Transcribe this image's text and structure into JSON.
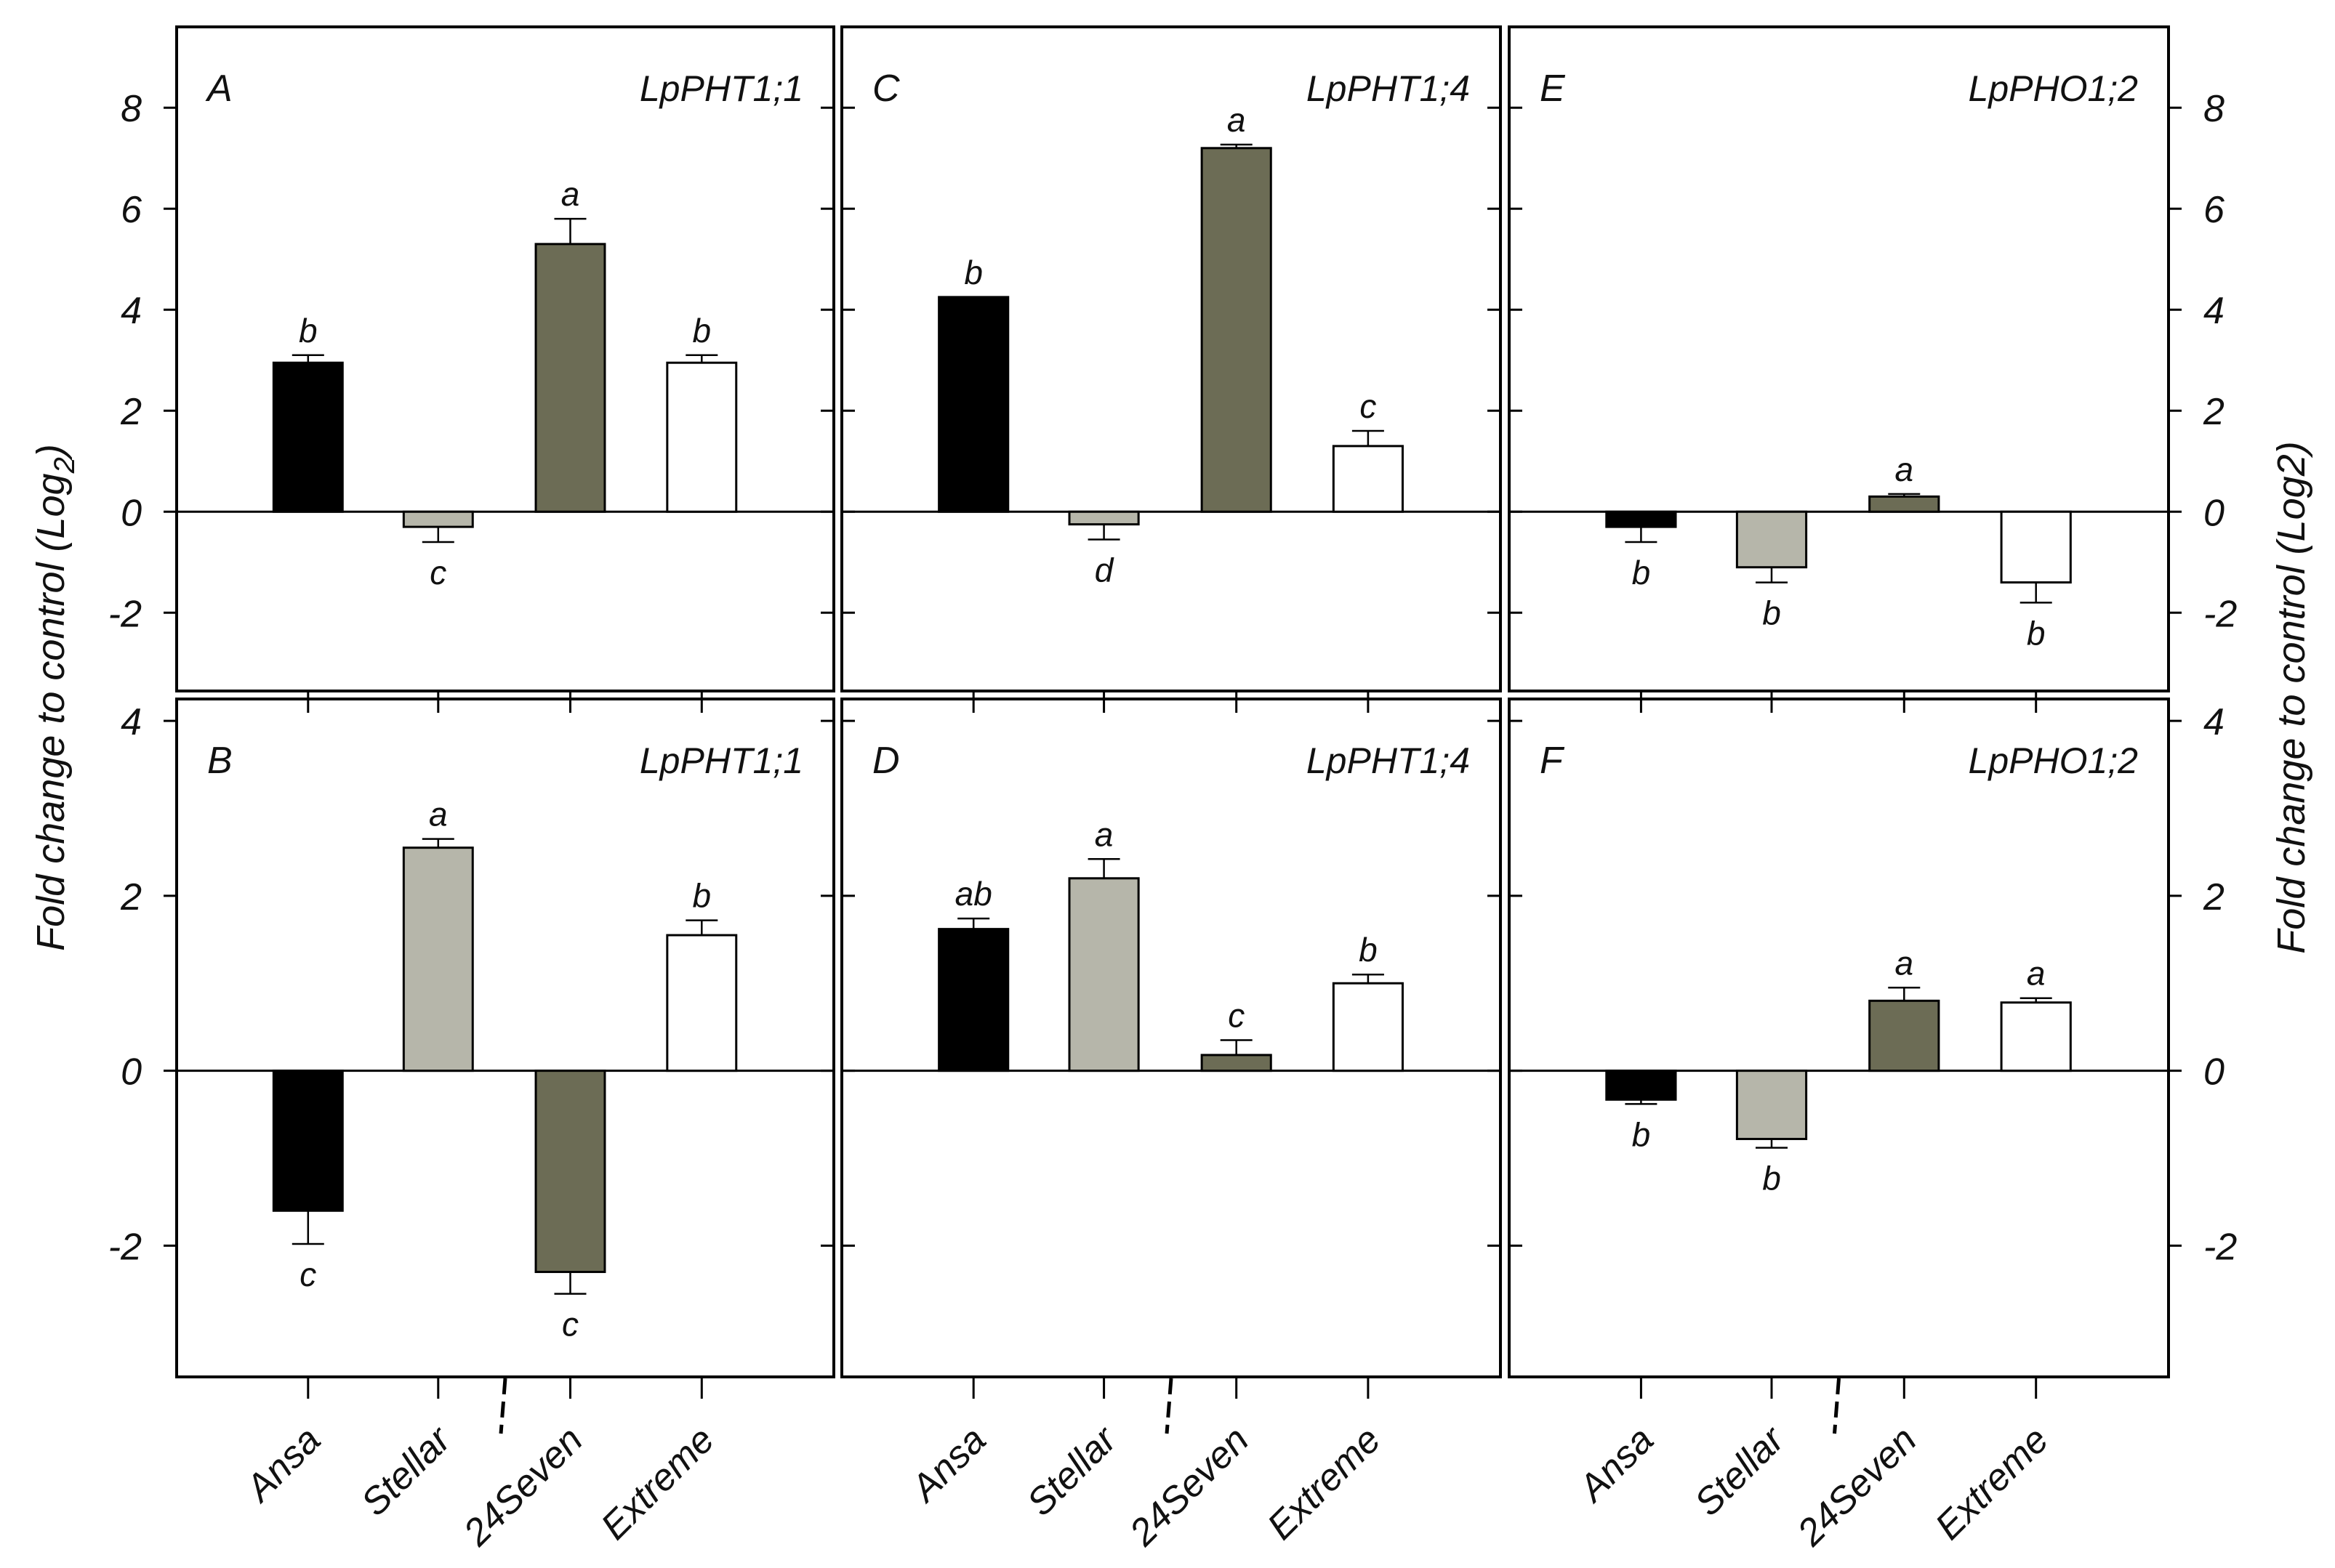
{
  "chart_data": {
    "type": "bar",
    "categories": [
      "Ansa",
      "Stellar",
      "24Seven",
      "Extreme"
    ],
    "colors": [
      "#000000",
      "#b6b6aa",
      "#6c6c55",
      "#ffffff"
    ],
    "left_ylabel": "Fold change to control (Log",
    "left_ylabel_sub": "2",
    "left_ylabel_end": ")",
    "right_ylabel": "Fold change to control (Log2)",
    "rows": [
      {
        "ylim": [
          -3.55,
          9.6
        ],
        "ticks": [
          -2,
          0,
          2,
          4,
          6,
          8
        ]
      },
      {
        "ylim": [
          -3.5,
          4.25
        ],
        "ticks": [
          -2,
          0,
          2,
          4
        ]
      }
    ],
    "panels": [
      {
        "letter": "A",
        "gene": "LpPHT1;1",
        "row": 0,
        "col": 0,
        "values": [
          2.95,
          -0.3,
          5.3,
          2.95
        ],
        "errors": [
          0.15,
          0.3,
          0.5,
          0.15
        ],
        "labels": [
          "b",
          "c",
          "a",
          "b"
        ]
      },
      {
        "letter": "C",
        "gene": "LpPHT1;4",
        "row": 0,
        "col": 1,
        "values": [
          4.25,
          -0.25,
          7.2,
          1.3
        ],
        "errors": [
          0.0,
          0.3,
          0.07,
          0.3
        ],
        "labels": [
          "b",
          "d",
          "a",
          "c"
        ]
      },
      {
        "letter": "E",
        "gene": "LpPHO1;2",
        "row": 0,
        "col": 2,
        "values": [
          -0.3,
          -1.1,
          0.3,
          -1.4
        ],
        "errors": [
          0.3,
          0.3,
          0.05,
          0.4
        ],
        "labels": [
          "b",
          "b",
          "a",
          "b"
        ]
      },
      {
        "letter": "B",
        "gene": "LpPHT1;1",
        "row": 1,
        "col": 0,
        "values": [
          -1.6,
          2.55,
          -2.3,
          1.55
        ],
        "errors": [
          0.38,
          0.1,
          0.25,
          0.17
        ],
        "labels": [
          "c",
          "a",
          "c",
          "b"
        ]
      },
      {
        "letter": "D",
        "gene": "LpPHT1;4",
        "row": 1,
        "col": 1,
        "values": [
          1.62,
          2.2,
          0.18,
          1.0
        ],
        "errors": [
          0.12,
          0.22,
          0.17,
          0.1
        ],
        "labels": [
          "ab",
          "a",
          "c",
          "b"
        ]
      },
      {
        "letter": "F",
        "gene": "LpPHO1;2",
        "row": 1,
        "col": 2,
        "values": [
          -0.33,
          -0.78,
          0.8,
          0.78
        ],
        "errors": [
          0.05,
          0.1,
          0.15,
          0.05
        ],
        "labels": [
          "b",
          "b",
          "a",
          "a"
        ]
      }
    ]
  }
}
